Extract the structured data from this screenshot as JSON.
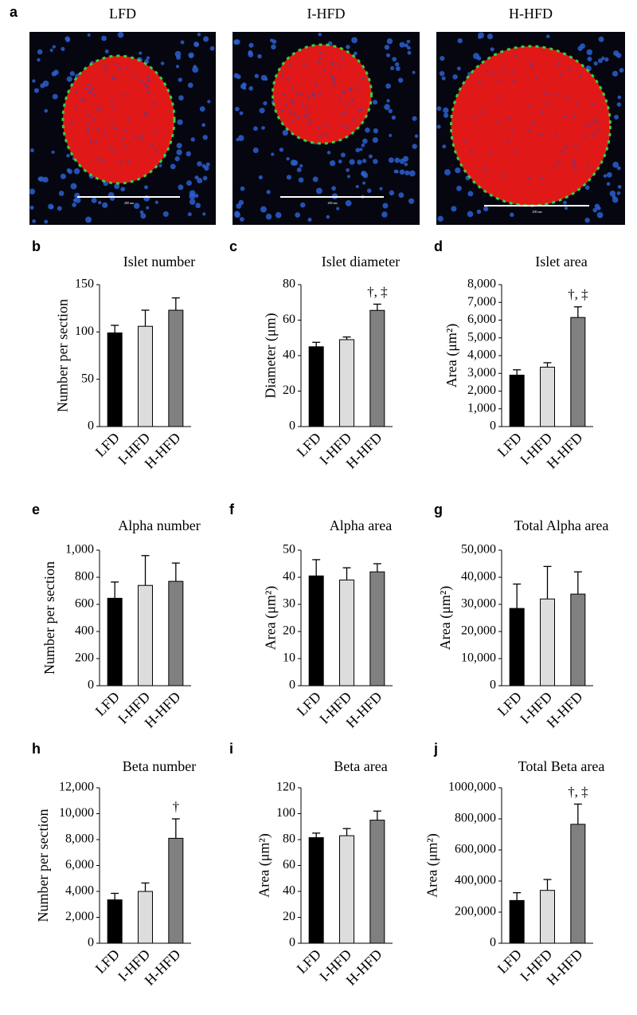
{
  "figure": {
    "panel": "a",
    "titles": [
      "LFD",
      "I-HFD",
      "H-HFD"
    ],
    "scale_label": "200 um"
  },
  "chart_data": [
    {
      "type": "bar",
      "panel": "b",
      "title": "Islet number",
      "ylabel": "Number per section",
      "categories": [
        "LFD",
        "I-HFD",
        "H-HFD"
      ],
      "values": [
        99,
        106,
        123
      ],
      "errors": [
        8,
        17,
        13
      ],
      "colors": [
        "#000000",
        "#dddddd",
        "#808080"
      ],
      "ylim": [
        0,
        150
      ],
      "yticks": [
        0,
        50,
        100,
        150
      ]
    },
    {
      "type": "bar",
      "panel": "c",
      "title": "Islet diameter",
      "ylabel": "Diameter (μm)",
      "categories": [
        "LFD",
        "I-HFD",
        "H-HFD"
      ],
      "values": [
        45,
        49,
        65.5
      ],
      "errors": [
        2.5,
        1.5,
        3.5
      ],
      "colors": [
        "#000000",
        "#dddddd",
        "#808080"
      ],
      "ylim": [
        0,
        80
      ],
      "yticks": [
        0,
        20,
        40,
        60,
        80
      ],
      "annotations": [
        {
          "text": "†, ‡",
          "category": "H-HFD"
        }
      ]
    },
    {
      "type": "bar",
      "panel": "d",
      "title": "Islet area",
      "ylabel": "Area (μm²)",
      "categories": [
        "LFD",
        "I-HFD",
        "H-HFD"
      ],
      "values": [
        2900,
        3350,
        6150
      ],
      "errors": [
        300,
        250,
        600
      ],
      "colors": [
        "#000000",
        "#dddddd",
        "#808080"
      ],
      "ylim": [
        0,
        8000
      ],
      "yticks": [
        0,
        {
          "value": 1000,
          "label": "1,000"
        },
        {
          "value": 2000,
          "label": "2,000"
        },
        {
          "value": 3000,
          "label": "3,000"
        },
        {
          "value": 4000,
          "label": "4,000"
        },
        {
          "value": 5000,
          "label": "5,000"
        },
        {
          "value": 6000,
          "label": "6,000"
        },
        {
          "value": 7000,
          "label": "7,000"
        },
        {
          "value": 8000,
          "label": "8,000"
        }
      ],
      "annotations": [
        {
          "text": "†, ‡",
          "category": "H-HFD"
        }
      ]
    },
    {
      "type": "bar",
      "panel": "e",
      "title": "Alpha number",
      "ylabel": "Number per section",
      "categories": [
        "LFD",
        "I-HFD",
        "H-HFD"
      ],
      "values": [
        645,
        740,
        770
      ],
      "errors": [
        120,
        220,
        135
      ],
      "colors": [
        "#000000",
        "#dddddd",
        "#808080"
      ],
      "ylim": [
        0,
        1000
      ],
      "yticks": [
        0,
        200,
        400,
        600,
        800,
        {
          "value": 1000,
          "label": "1,000"
        }
      ]
    },
    {
      "type": "bar",
      "panel": "f",
      "title": "Alpha area",
      "ylabel": "Area (μm²)",
      "categories": [
        "LFD",
        "I-HFD",
        "H-HFD"
      ],
      "values": [
        40.5,
        39,
        42
      ],
      "errors": [
        6,
        4.5,
        3
      ],
      "colors": [
        "#000000",
        "#dddddd",
        "#808080"
      ],
      "ylim": [
        0,
        50
      ],
      "yticks": [
        0,
        10,
        20,
        30,
        40,
        50
      ]
    },
    {
      "type": "bar",
      "panel": "g",
      "title": "Total Alpha area",
      "ylabel": "Area (μm²)",
      "categories": [
        "LFD",
        "I-HFD",
        "H-HFD"
      ],
      "values": [
        28500,
        32000,
        33800
      ],
      "errors": [
        9000,
        12000,
        8200
      ],
      "colors": [
        "#000000",
        "#dddddd",
        "#808080"
      ],
      "ylim": [
        0,
        50000
      ],
      "yticks": [
        0,
        {
          "value": 10000,
          "label": "10,000"
        },
        {
          "value": 20000,
          "label": "20,000"
        },
        {
          "value": 30000,
          "label": "30,000"
        },
        {
          "value": 40000,
          "label": "40,000"
        },
        {
          "value": 50000,
          "label": "50,000"
        }
      ]
    },
    {
      "type": "bar",
      "panel": "h",
      "title": "Beta number",
      "ylabel": "Number per section",
      "categories": [
        "LFD",
        "I-HFD",
        "H-HFD"
      ],
      "values": [
        3350,
        4000,
        8100
      ],
      "errors": [
        500,
        650,
        1500
      ],
      "colors": [
        "#000000",
        "#dddddd",
        "#808080"
      ],
      "ylim": [
        0,
        12000
      ],
      "yticks": [
        0,
        {
          "value": 2000,
          "label": "2,000"
        },
        {
          "value": 4000,
          "label": "4,000"
        },
        {
          "value": 6000,
          "label": "6,000"
        },
        {
          "value": 8000,
          "label": "8,000"
        },
        {
          "value": 10000,
          "label": "10,000"
        },
        {
          "value": 12000,
          "label": "12,000"
        }
      ],
      "annotations": [
        {
          "text": "†",
          "category": "H-HFD"
        }
      ]
    },
    {
      "type": "bar",
      "panel": "i",
      "title": "Beta area",
      "ylabel": "Area (μm²)",
      "categories": [
        "LFD",
        "I-HFD",
        "H-HFD"
      ],
      "values": [
        81.5,
        83,
        95
      ],
      "errors": [
        3.5,
        5.5,
        7
      ],
      "colors": [
        "#000000",
        "#dddddd",
        "#808080"
      ],
      "ylim": [
        0,
        120
      ],
      "yticks": [
        0,
        20,
        40,
        60,
        80,
        100,
        120
      ]
    },
    {
      "type": "bar",
      "panel": "j",
      "title": "Total Beta area",
      "ylabel": "Area (μm²)",
      "categories": [
        "LFD",
        "I-HFD",
        "H-HFD"
      ],
      "values": [
        275000,
        340000,
        765000
      ],
      "errors": [
        50000,
        70000,
        130000
      ],
      "colors": [
        "#000000",
        "#dddddd",
        "#808080"
      ],
      "ylim": [
        0,
        1000000
      ],
      "yticks": [
        0,
        {
          "value": 200000,
          "label": "200,000"
        },
        {
          "value": 400000,
          "label": "400,000"
        },
        {
          "value": 600000,
          "label": "600,000"
        },
        {
          "value": 800000,
          "label": "800,000"
        },
        {
          "value": 1000000,
          "label": "1000,000"
        }
      ],
      "annotations": [
        {
          "text": "†, ‡",
          "category": "H-HFD"
        }
      ]
    }
  ]
}
